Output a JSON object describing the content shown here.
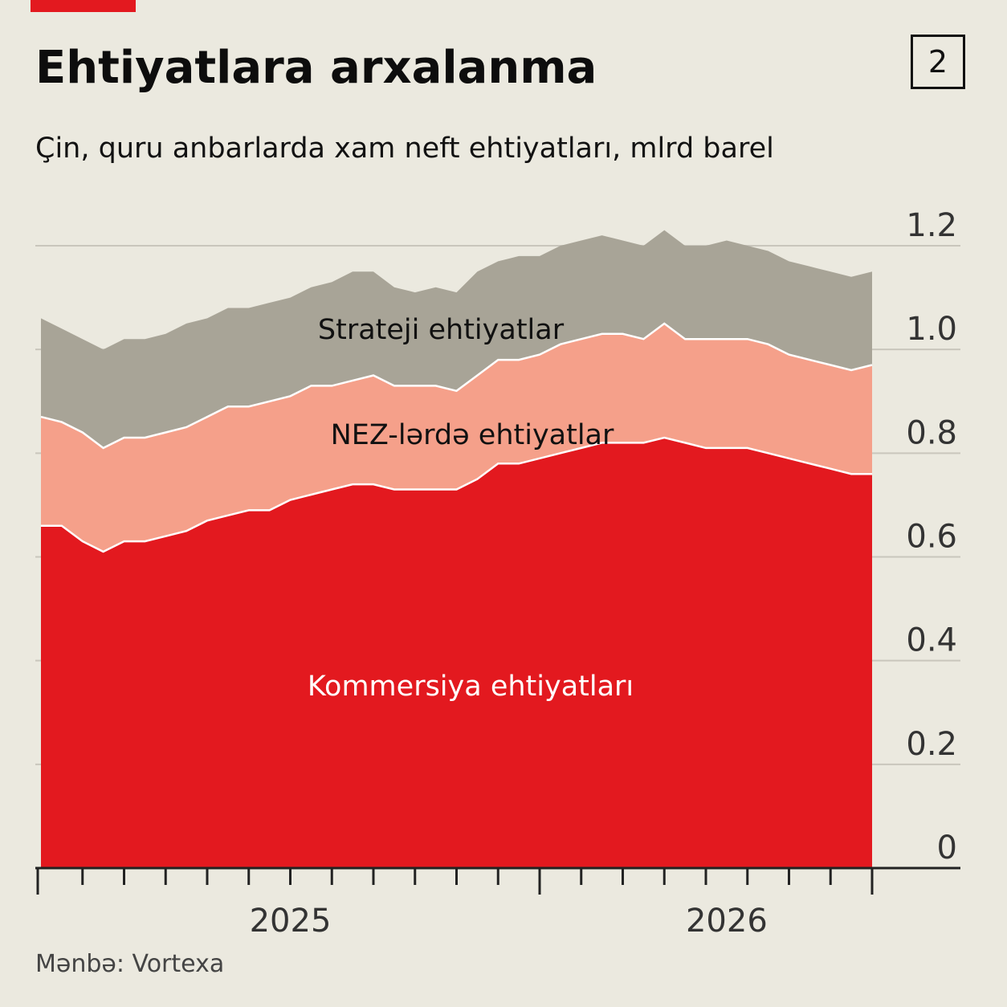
{
  "badge": "2",
  "title": "Ehtiyatlara arxalanma",
  "subtitle": "Çin, quru anbarlarda xam neft ehtiyatları, mlrd barel",
  "source": "Mənbə: Vortexa",
  "colors": {
    "background": "#ebe9df",
    "commercial": "#e3191f",
    "nez": "#f5a08a",
    "strategic": "#a8a497",
    "grid": "#c9c6bc",
    "axis": "#222222",
    "accent": "#e3191f"
  },
  "chart_data": {
    "type": "area",
    "stacked": true,
    "ylim": [
      0,
      1.2
    ],
    "y_ticks": [
      0,
      0.2,
      0.4,
      0.6,
      0.8,
      1.0,
      1.2
    ],
    "y_tick_labels": [
      "0",
      "0.2",
      "0.4",
      "0.6",
      "0.8",
      "1.0",
      "1.2"
    ],
    "x_tick_labels": [
      "2025",
      "2026"
    ],
    "x_tick_label_months": [
      6,
      16.5
    ],
    "x_range_months": [
      0,
      20
    ],
    "x_minor_tick_months": [
      0,
      1,
      2,
      3,
      4,
      5,
      6,
      7,
      8,
      9,
      10,
      11,
      12,
      13,
      14,
      15,
      16,
      17,
      18,
      19,
      20
    ],
    "x_major_tick_months": [
      0,
      12,
      20
    ],
    "grid": true,
    "x_months": [
      0,
      0.5,
      1,
      1.5,
      2,
      2.5,
      3,
      3.5,
      4,
      4.5,
      5,
      5.5,
      6,
      6.5,
      7,
      7.5,
      8,
      8.5,
      9,
      9.5,
      10,
      10.5,
      11,
      11.5,
      12,
      12.5,
      13,
      13.5,
      14,
      14.5,
      15,
      15.5,
      16,
      16.5,
      17,
      17.5,
      18,
      18.5,
      19,
      19.5,
      20
    ],
    "series": [
      {
        "name": "Kommersiya ehtiyatları",
        "values": [
          0.66,
          0.66,
          0.63,
          0.61,
          0.63,
          0.63,
          0.64,
          0.65,
          0.67,
          0.68,
          0.69,
          0.69,
          0.71,
          0.72,
          0.73,
          0.74,
          0.74,
          0.73,
          0.73,
          0.73,
          0.73,
          0.75,
          0.78,
          0.78,
          0.79,
          0.8,
          0.81,
          0.82,
          0.82,
          0.82,
          0.83,
          0.82,
          0.81,
          0.81,
          0.81,
          0.8,
          0.79,
          0.78,
          0.77,
          0.76,
          0.76
        ]
      },
      {
        "name": "NEZ-lərdə ehtiyatlar",
        "values": [
          0.21,
          0.2,
          0.21,
          0.2,
          0.2,
          0.2,
          0.2,
          0.2,
          0.2,
          0.21,
          0.2,
          0.21,
          0.2,
          0.21,
          0.2,
          0.2,
          0.21,
          0.2,
          0.2,
          0.2,
          0.19,
          0.2,
          0.2,
          0.2,
          0.2,
          0.21,
          0.21,
          0.21,
          0.21,
          0.2,
          0.22,
          0.2,
          0.21,
          0.21,
          0.21,
          0.21,
          0.2,
          0.2,
          0.2,
          0.2,
          0.21
        ]
      },
      {
        "name": "Strateji ehtiyatlar",
        "values": [
          0.19,
          0.18,
          0.18,
          0.19,
          0.19,
          0.19,
          0.19,
          0.2,
          0.19,
          0.19,
          0.19,
          0.19,
          0.19,
          0.19,
          0.2,
          0.21,
          0.2,
          0.19,
          0.18,
          0.19,
          0.19,
          0.2,
          0.19,
          0.2,
          0.19,
          0.19,
          0.19,
          0.19,
          0.18,
          0.18,
          0.18,
          0.18,
          0.18,
          0.19,
          0.18,
          0.18,
          0.18,
          0.18,
          0.18,
          0.18,
          0.18
        ]
      }
    ]
  }
}
